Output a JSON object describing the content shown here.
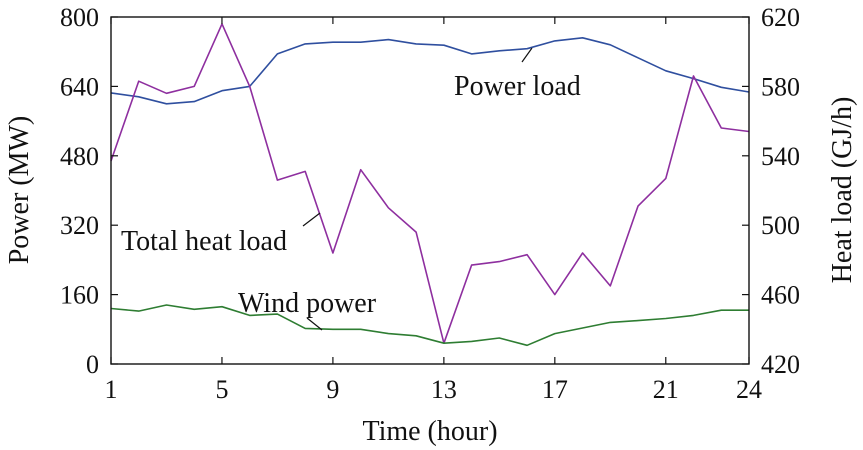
{
  "chart_data": {
    "type": "line",
    "xlabel": "Time (hour)",
    "ylabel_left": "Power (MW)",
    "ylabel_right": "Heat load (GJ/h)",
    "xlim": [
      1,
      24
    ],
    "ylim_left": [
      0,
      800
    ],
    "ylim_right": [
      420,
      620
    ],
    "x_ticks": [
      1,
      5,
      9,
      13,
      17,
      21,
      24
    ],
    "y_ticks_left": [
      0,
      160,
      320,
      480,
      640,
      800
    ],
    "y_ticks_right": [
      420,
      460,
      500,
      540,
      580,
      620
    ],
    "grid": false,
    "x": [
      1,
      2,
      3,
      4,
      5,
      6,
      7,
      8,
      9,
      10,
      11,
      12,
      13,
      14,
      15,
      16,
      17,
      18,
      19,
      20,
      21,
      22,
      23,
      24
    ],
    "series": [
      {
        "name": "Power load",
        "axis": "left",
        "color": "#2f4f9f",
        "values": [
          625,
          616,
          600,
          605,
          630,
          640,
          715,
          738,
          742,
          742,
          748,
          738,
          735,
          715,
          722,
          727,
          745,
          752,
          736,
          706,
          676,
          658,
          638,
          627
        ]
      },
      {
        "name": "Total heat load",
        "axis": "right",
        "color": "#8e2f9f",
        "values": [
          537,
          583,
          576,
          580,
          616,
          580,
          526,
          531,
          484,
          532,
          510,
          496,
          432,
          477,
          479,
          483,
          460,
          484,
          465,
          511,
          527,
          586,
          556,
          554
        ]
      },
      {
        "name": "Wind power",
        "axis": "left",
        "color": "#2e7d32",
        "values": [
          128,
          122,
          136,
          126,
          132,
          112,
          115,
          82,
          80,
          80,
          70,
          65,
          48,
          52,
          60,
          43,
          70,
          83,
          96,
          100,
          105,
          112,
          124,
          124
        ]
      }
    ],
    "annotations": [
      {
        "text": "Power load",
        "series": "Power load"
      },
      {
        "text": "Total heat load",
        "series": "Total heat load"
      },
      {
        "text": "Wind power",
        "series": "Wind power"
      }
    ]
  }
}
